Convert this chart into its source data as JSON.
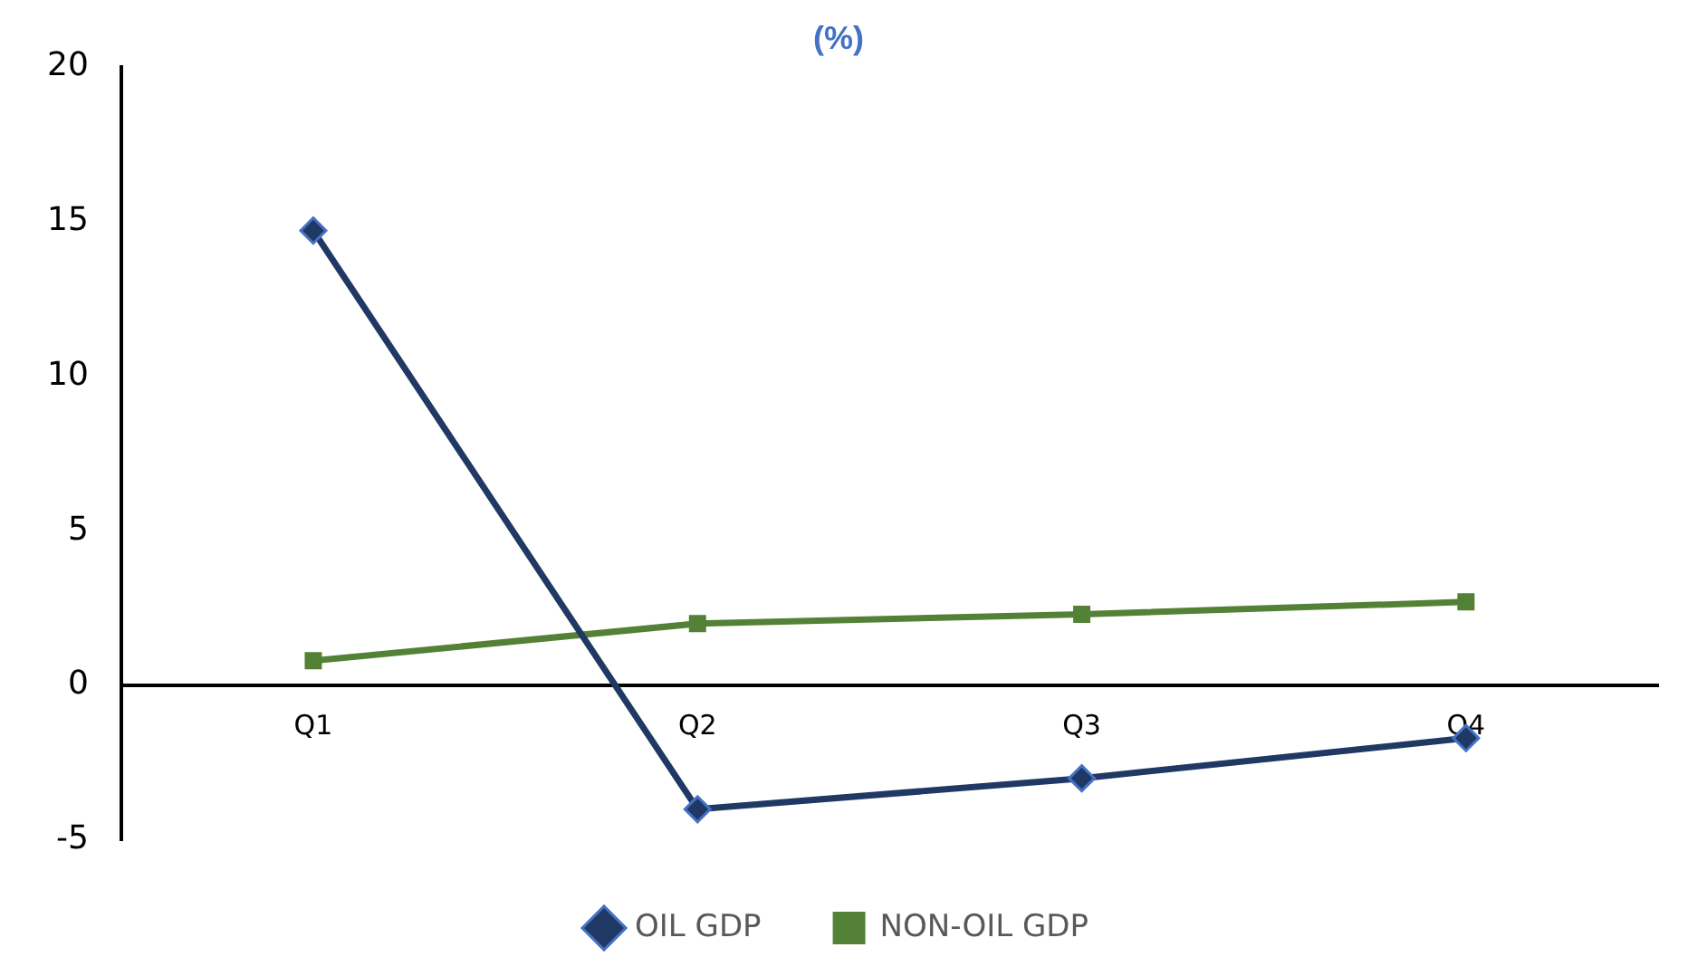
{
  "chart_data": {
    "type": "line",
    "title": "(%)",
    "categories": [
      "Q1",
      "Q2",
      "Q3",
      "Q4"
    ],
    "series": [
      {
        "name": "OIL GDP",
        "color": "#203864",
        "marker": "diamond",
        "values": [
          14.7,
          -4.0,
          -3.0,
          -1.7
        ]
      },
      {
        "name": "NON-OIL GDP",
        "color": "#538135",
        "marker": "square",
        "values": [
          0.8,
          2.0,
          2.3,
          2.7
        ]
      }
    ],
    "ylim": [
      -5,
      20
    ],
    "yticks": [
      -5,
      0,
      5,
      10,
      15,
      20
    ],
    "grid": false,
    "legend": "bottom",
    "line_style": "solid"
  }
}
